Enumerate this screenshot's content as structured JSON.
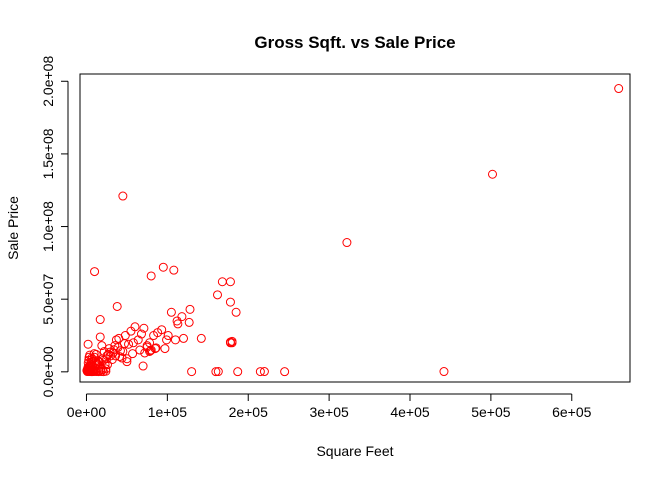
{
  "chart_data": {
    "type": "scatter",
    "title": "Gross Sqft. vs Sale Price",
    "xlabel": "Square Feet",
    "ylabel": "Sale Price",
    "xlim": [
      -8000,
      672000
    ],
    "ylim": [
      -7000000,
      205000000
    ],
    "x_ticks": [
      0,
      100000,
      200000,
      300000,
      400000,
      500000,
      600000
    ],
    "x_tick_labels": [
      "0e+00",
      "1e+05",
      "2e+05",
      "3e+05",
      "4e+05",
      "5e+05",
      "6e+05"
    ],
    "y_ticks": [
      0,
      50000000,
      100000000,
      150000000,
      200000000
    ],
    "y_tick_labels": [
      "0.0e+00",
      "5.0e+07",
      "1.0e+08",
      "1.5e+08",
      "2.0e+08"
    ],
    "grid": false,
    "legend": "none",
    "point_color": "#ff0000",
    "x": [
      658000,
      502000,
      322000,
      45000,
      10000,
      442000,
      95000,
      108000,
      80000,
      168000,
      178000,
      162000,
      178000,
      185000,
      38000,
      17000,
      105000,
      113000,
      118000,
      127000,
      110000,
      120000,
      93000,
      142000,
      128000,
      83000,
      88000,
      99000,
      71000,
      78000,
      60000,
      68000,
      75000,
      97000,
      55000,
      52000,
      48000,
      45000,
      58000,
      64000,
      72000,
      75000,
      80000,
      40000,
      37000,
      35000,
      33000,
      28000,
      25000,
      22000,
      19000,
      17000,
      15000,
      12000,
      10000,
      30000,
      26000,
      21000,
      16000,
      13000,
      9000,
      7000,
      5000,
      3000,
      2000,
      1000,
      1500,
      2500,
      3500,
      4500,
      5500,
      6500,
      8000,
      11000,
      14000,
      18000,
      23000,
      800,
      1200,
      1800,
      2200,
      2800,
      3200,
      4000,
      4800,
      5200,
      6000,
      7200,
      8500,
      9500,
      1100,
      1900,
      2600,
      3300,
      4200,
      5100,
      6100,
      7300,
      8800,
      10500,
      12500,
      15500,
      20000,
      24000,
      27000,
      32000,
      36000,
      42000,
      50000,
      57000,
      66000,
      78000,
      86000,
      160000,
      163000,
      178000,
      180000,
      187000,
      215000,
      220000,
      245000,
      130000,
      70000,
      50000,
      44000,
      41000,
      6000,
      9000,
      12000,
      15000,
      18000,
      21000,
      24000,
      2000,
      4000,
      500,
      3000,
      7500,
      11500,
      16500,
      19500,
      25500,
      29000,
      34000,
      39000,
      47000,
      178000,
      180000,
      112000,
      101000,
      85000,
      79000
    ],
    "y": [
      195000000,
      136000000,
      89000000,
      121000000,
      69000000,
      200000,
      72000000,
      70000000,
      66000000,
      62000000,
      62000000,
      53000000,
      48000000,
      41000000,
      45000000,
      36000000,
      41000000,
      33000000,
      38000000,
      34000000,
      22000000,
      23000000,
      29000000,
      23000000,
      43000000,
      25000000,
      27000000,
      22000000,
      30000000,
      20000000,
      31000000,
      26000000,
      17000000,
      16000000,
      28000000,
      19000000,
      25000000,
      14000000,
      20000000,
      22000000,
      13000000,
      18000000,
      15000000,
      23000000,
      22000000,
      18000000,
      13000000,
      16000000,
      9000000,
      14000000,
      18000000,
      24000000,
      7000000,
      12000000,
      10000000,
      11000000,
      5000000,
      8000000,
      3000000,
      6000000,
      2000000,
      8500000,
      5500000,
      1500000,
      19000000,
      500000,
      1000000,
      2500000,
      4000000,
      3500000,
      6500000,
      9500000,
      1200000,
      4500000,
      7500000,
      2000000,
      5000000,
      800000,
      1800000,
      3000000,
      6000000,
      8000000,
      10000000,
      11500000,
      2200000,
      4200000,
      6800000,
      3300000,
      1000000,
      12500000,
      200000,
      300000,
      400000,
      600000,
      900000,
      500000,
      700000,
      150000,
      350000,
      450000,
      250000,
      550000,
      1500000,
      2000000,
      12000000,
      8500000,
      11000000,
      14500000,
      9000000,
      12500000,
      15000000,
      14000000,
      16500000,
      100000,
      200000,
      20000000,
      21000000,
      100000,
      150000,
      200000,
      100000,
      150000,
      4000000,
      7000000,
      9500000,
      10500000,
      100000,
      200000,
      300000,
      150000,
      250000,
      100000,
      400000,
      300000,
      200000,
      1000000,
      2400000,
      3800000,
      5200000,
      6700000,
      8800000,
      11200000,
      13600000,
      15200000,
      16800000,
      19400000,
      20500000,
      20000000,
      35000000,
      25000000,
      16000000,
      14500000
    ]
  }
}
